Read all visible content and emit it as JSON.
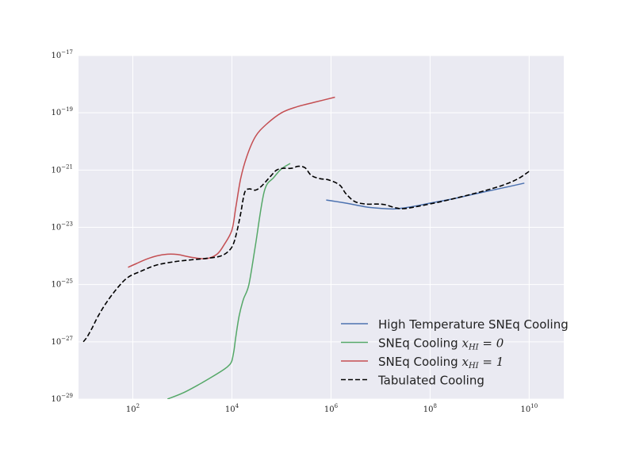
{
  "chart_data": {
    "type": "line",
    "xscale": "log",
    "yscale": "log",
    "xlim": [
      8,
      50000000000.0
    ],
    "ylim": [
      1e-29,
      1e-17
    ],
    "grid": true,
    "legend_position": "lower-right",
    "x_ticks": [
      {
        "value": 100,
        "base": "10",
        "exp": "2"
      },
      {
        "value": 10000,
        "base": "10",
        "exp": "4"
      },
      {
        "value": 1000000,
        "base": "10",
        "exp": "6"
      },
      {
        "value": 100000000,
        "base": "10",
        "exp": "8"
      },
      {
        "value": 10000000000,
        "base": "10",
        "exp": "10"
      }
    ],
    "y_ticks": [
      {
        "value": 1e-17,
        "base": "10",
        "exp": "−17"
      },
      {
        "value": 1e-19,
        "base": "10",
        "exp": "−19"
      },
      {
        "value": 1e-21,
        "base": "10",
        "exp": "−21"
      },
      {
        "value": 1e-23,
        "base": "10",
        "exp": "−23"
      },
      {
        "value": 1e-25,
        "base": "10",
        "exp": "−25"
      },
      {
        "value": 1e-27,
        "base": "10",
        "exp": "−27"
      },
      {
        "value": 1e-29,
        "base": "10",
        "exp": "−29"
      }
    ],
    "series": [
      {
        "name": "High Temperature SNEq Cooling",
        "name_math": "",
        "color": "#4c72b0",
        "dash": "solid",
        "x": [
          800000,
          2000000,
          5000000,
          10000000,
          20000000,
          50000000,
          100000000,
          300000000,
          1000000000,
          3000000000,
          8000000000
        ],
        "y": [
          9e-23,
          7e-23,
          5.2e-23,
          4.6e-23,
          4.4e-23,
          5.5e-23,
          7e-23,
          1e-22,
          1.6e-22,
          2.4e-22,
          3.5e-22
        ]
      },
      {
        "name": "SNEq Cooling ",
        "name_math": "x_HI = 0",
        "color": "#55a868",
        "dash": "solid",
        "x": [
          500,
          1000,
          2000,
          4000,
          7000,
          9000,
          10000,
          11000,
          12000,
          14000,
          17000,
          22000,
          30000,
          45000,
          70000,
          100000,
          150000
        ],
        "y": [
          1e-29,
          1.6e-29,
          3e-29,
          6e-29,
          1.1e-28,
          1.6e-28,
          2.2e-28,
          5e-28,
          1.5e-27,
          8e-27,
          3e-26,
          1e-25,
          2.5e-24,
          1.8e-22,
          5.5e-22,
          1.1e-21,
          1.7e-21
        ]
      },
      {
        "name": "SNEq Cooling ",
        "name_math": "x_HI = 1",
        "color": "#c44e52",
        "dash": "solid",
        "x": [
          80,
          120,
          200,
          300,
          500,
          800,
          1500,
          3000,
          5000,
          7000,
          10000,
          12000,
          15000,
          20000,
          30000,
          50000,
          100000,
          200000,
          500000,
          1200000
        ],
        "y": [
          4e-25,
          5.5e-25,
          8e-25,
          1e-24,
          1.15e-24,
          1.12e-24,
          9e-25,
          8e-25,
          1.15e-24,
          2.5e-24,
          8e-24,
          5e-23,
          5e-22,
          3e-21,
          1.5e-20,
          4e-20,
          1e-19,
          1.6e-19,
          2.4e-19,
          3.5e-19
        ]
      },
      {
        "name": "Tabulated Cooling",
        "name_math": "",
        "color": "#000000",
        "dash": "dashed",
        "x": [
          10,
          12,
          15,
          20,
          30,
          50,
          80,
          150,
          300,
          700,
          1500,
          3000,
          6000,
          9000,
          11000,
          13000,
          15000,
          18000,
          22000,
          30000,
          40000,
          60000,
          80000,
          110000,
          160000,
          220000,
          300000,
          400000,
          600000,
          900000,
          1500000,
          2000000,
          3000000,
          5000000,
          8000000,
          12000000,
          20000000,
          30000000,
          60000000,
          200000000,
          1000000000,
          3000000000,
          6000000000,
          10000000000
        ],
        "y": [
          1e-27,
          1.5e-27,
          3e-27,
          8e-27,
          2.5e-26,
          8e-26,
          1.8e-25,
          3e-25,
          4.8e-25,
          6.3e-25,
          7.3e-25,
          8.2e-25,
          1e-24,
          1.6e-24,
          3e-24,
          9e-24,
          3e-23,
          1.6e-22,
          2.2e-22,
          2e-22,
          2.8e-22,
          6e-22,
          1e-21,
          1.15e-21,
          1.15e-21,
          1.35e-21,
          1.2e-21,
          6.5e-22,
          5e-22,
          4.5e-22,
          3e-22,
          1.5e-22,
          8e-23,
          6.5e-23,
          6.5e-23,
          6.2e-23,
          4.8e-23,
          4.5e-23,
          5.5e-23,
          8.5e-23,
          1.7e-22,
          3e-22,
          5e-22,
          9e-22
        ]
      }
    ]
  }
}
